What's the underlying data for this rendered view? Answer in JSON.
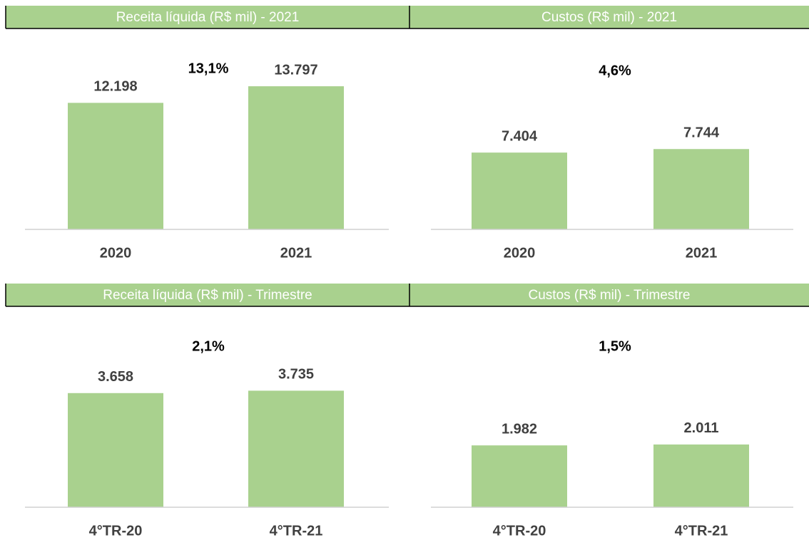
{
  "chart_data": [
    {
      "type": "bar",
      "title": "Receita líquida (R$ mil) - 2021",
      "categories": [
        "2020",
        "2021"
      ],
      "values": [
        12198,
        13797
      ],
      "value_labels": [
        "12.198",
        "13.797"
      ],
      "annotation": "13,1%",
      "color": "#a9d18e",
      "ylim": [
        0,
        16000
      ]
    },
    {
      "type": "bar",
      "title": "Custos (R$ mil) - 2021",
      "categories": [
        "2020",
        "2021"
      ],
      "values": [
        7404,
        7744
      ],
      "value_labels": [
        "7.404",
        "7.744"
      ],
      "annotation": "4,6%",
      "color": "#a9d18e",
      "ylim": [
        0,
        16000
      ]
    },
    {
      "type": "bar",
      "title": "Receita líquida (R$ mil) - Trimestre",
      "categories": [
        "4°TR-20",
        "4°TR-21"
      ],
      "values": [
        3658,
        3735
      ],
      "value_labels": [
        "3.658",
        "3.735"
      ],
      "annotation": "2,1%",
      "color": "#a9d18e",
      "ylim": [
        0,
        5000
      ]
    },
    {
      "type": "bar",
      "title": "Custos (R$ mil) - Trimestre",
      "categories": [
        "4°TR-20",
        "4°TR-21"
      ],
      "values": [
        1982,
        2011
      ],
      "value_labels": [
        "1.982",
        "2.011"
      ],
      "annotation": "1,5%",
      "color": "#a9d18e",
      "ylim": [
        0,
        5000
      ]
    }
  ]
}
